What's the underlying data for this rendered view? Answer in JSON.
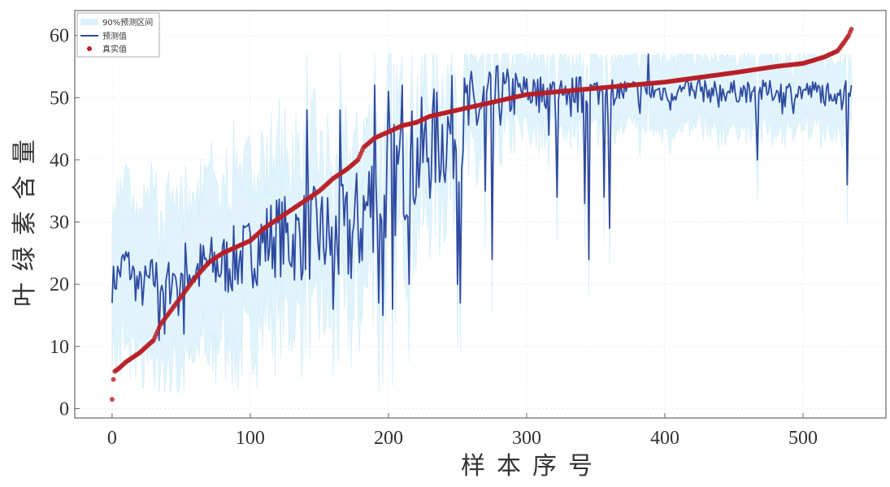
{
  "chart_data": {
    "type": "line",
    "xlabel": "样本序号",
    "ylabel": "叶绿素含量",
    "xlim": [
      -27,
      560
    ],
    "ylim": [
      -1.5,
      64
    ],
    "x_ticks": [
      0,
      100,
      200,
      300,
      400,
      500
    ],
    "y_ticks": [
      0,
      10,
      20,
      30,
      40,
      50,
      60
    ],
    "grid": true,
    "legend_placement": "top-left",
    "n_samples": 536,
    "series": [
      {
        "name": "90%预测区间",
        "kind": "band",
        "color": "#dcf2fb",
        "width_by_x": [
          [
            0,
            13
          ],
          [
            100,
            14
          ],
          [
            200,
            12
          ],
          [
            300,
            6
          ],
          [
            400,
            6
          ],
          [
            535,
            6
          ]
        ]
      },
      {
        "name": "预测值",
        "kind": "line",
        "color": "#2f4aa0",
        "keypoints": [
          [
            0,
            20
          ],
          [
            3,
            21
          ],
          [
            10,
            24
          ],
          [
            20,
            19
          ],
          [
            30,
            21
          ],
          [
            40,
            20
          ],
          [
            50,
            23
          ],
          [
            60,
            22
          ],
          [
            70,
            23
          ],
          [
            80,
            23
          ],
          [
            90,
            24
          ],
          [
            100,
            25
          ],
          [
            110,
            27
          ],
          [
            120,
            28
          ],
          [
            130,
            27
          ],
          [
            140,
            28
          ],
          [
            150,
            28
          ],
          [
            160,
            27
          ],
          [
            170,
            27
          ],
          [
            180,
            30
          ],
          [
            190,
            35
          ],
          [
            200,
            36
          ],
          [
            210,
            38
          ],
          [
            220,
            40
          ],
          [
            230,
            42
          ],
          [
            240,
            44
          ],
          [
            250,
            45
          ],
          [
            260,
            47
          ],
          [
            270,
            49
          ],
          [
            280,
            50
          ],
          [
            300,
            51
          ],
          [
            350,
            51
          ],
          [
            400,
            51
          ],
          [
            450,
            51
          ],
          [
            500,
            51
          ],
          [
            535,
            51
          ]
        ],
        "noise_by_x": [
          [
            0,
            3
          ],
          [
            100,
            6
          ],
          [
            150,
            8
          ],
          [
            180,
            10
          ],
          [
            250,
            9
          ],
          [
            300,
            3
          ],
          [
            400,
            1.8
          ],
          [
            535,
            1.8
          ]
        ],
        "spikes": [
          [
            34,
            11
          ],
          [
            38,
            12
          ],
          [
            48,
            15
          ],
          [
            52,
            12
          ],
          [
            141,
            48
          ],
          [
            160,
            16
          ],
          [
            165,
            48
          ],
          [
            190,
            52
          ],
          [
            193,
            17
          ],
          [
            196,
            15
          ],
          [
            200,
            51
          ],
          [
            203,
            16
          ],
          [
            210,
            52
          ],
          [
            215,
            20
          ],
          [
            250,
            20
          ],
          [
            252,
            17
          ],
          [
            257,
            52
          ],
          [
            270,
            35
          ],
          [
            275,
            24
          ],
          [
            300,
            53
          ],
          [
            316,
            44
          ],
          [
            322,
            34
          ],
          [
            332,
            47
          ],
          [
            342,
            33
          ],
          [
            345,
            24
          ],
          [
            356,
            34
          ],
          [
            360,
            29
          ],
          [
            388,
            57
          ],
          [
            425,
            53
          ],
          [
            467,
            40
          ],
          [
            532,
            36
          ],
          [
            535,
            52
          ]
        ]
      },
      {
        "name": "真实值",
        "kind": "scatter",
        "color": "#b81e25",
        "keypoints": [
          [
            0,
            1.5
          ],
          [
            1,
            4.7
          ],
          [
            2,
            6
          ],
          [
            5,
            6.5
          ],
          [
            10,
            7.5
          ],
          [
            20,
            9
          ],
          [
            30,
            11
          ],
          [
            35,
            13.5
          ],
          [
            40,
            15
          ],
          [
            50,
            18
          ],
          [
            60,
            21
          ],
          [
            70,
            23.5
          ],
          [
            80,
            25
          ],
          [
            100,
            27
          ],
          [
            110,
            29
          ],
          [
            120,
            30.5
          ],
          [
            130,
            32
          ],
          [
            140,
            33.5
          ],
          [
            150,
            35
          ],
          [
            160,
            37
          ],
          [
            170,
            38.5
          ],
          [
            178,
            40
          ],
          [
            182,
            42
          ],
          [
            190,
            43.5
          ],
          [
            200,
            44.5
          ],
          [
            210,
            45.5
          ],
          [
            220,
            46
          ],
          [
            230,
            47
          ],
          [
            240,
            47.5
          ],
          [
            250,
            48
          ],
          [
            270,
            49
          ],
          [
            300,
            50.5
          ],
          [
            350,
            51.5
          ],
          [
            400,
            52.5
          ],
          [
            450,
            54
          ],
          [
            480,
            55
          ],
          [
            500,
            55.5
          ],
          [
            515,
            56.5
          ],
          [
            525,
            57.5
          ],
          [
            530,
            59
          ],
          [
            533,
            60
          ],
          [
            535,
            61
          ]
        ]
      }
    ]
  }
}
